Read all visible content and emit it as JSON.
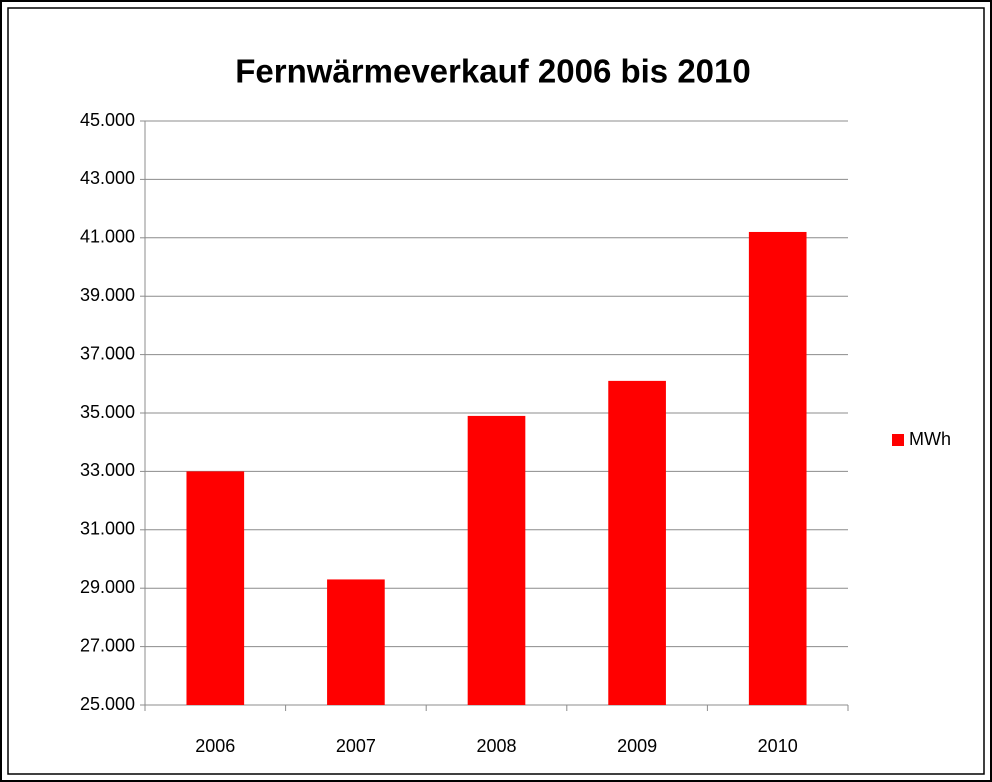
{
  "chart_data": {
    "type": "bar",
    "title": "Fernwärmeverkauf 2006 bis 2010",
    "categories": [
      "2006",
      "2007",
      "2008",
      "2009",
      "2010"
    ],
    "series": [
      {
        "name": "MWh",
        "color": "#ff0000",
        "values": [
          33000,
          29300,
          34900,
          36100,
          41200
        ]
      }
    ],
    "ylim": [
      25000,
      45000
    ],
    "yticks": [
      {
        "value": 25000,
        "label": "25.000"
      },
      {
        "value": 27000,
        "label": "27.000"
      },
      {
        "value": 29000,
        "label": "29.000"
      },
      {
        "value": 31000,
        "label": "31.000"
      },
      {
        "value": 33000,
        "label": "33.000"
      },
      {
        "value": 35000,
        "label": "35.000"
      },
      {
        "value": 37000,
        "label": "37.000"
      },
      {
        "value": 39000,
        "label": "39.000"
      },
      {
        "value": 41000,
        "label": "41.000"
      },
      {
        "value": 43000,
        "label": "43.000"
      },
      {
        "value": 45000,
        "label": "45.000"
      }
    ],
    "grid": true,
    "legend": "right"
  }
}
